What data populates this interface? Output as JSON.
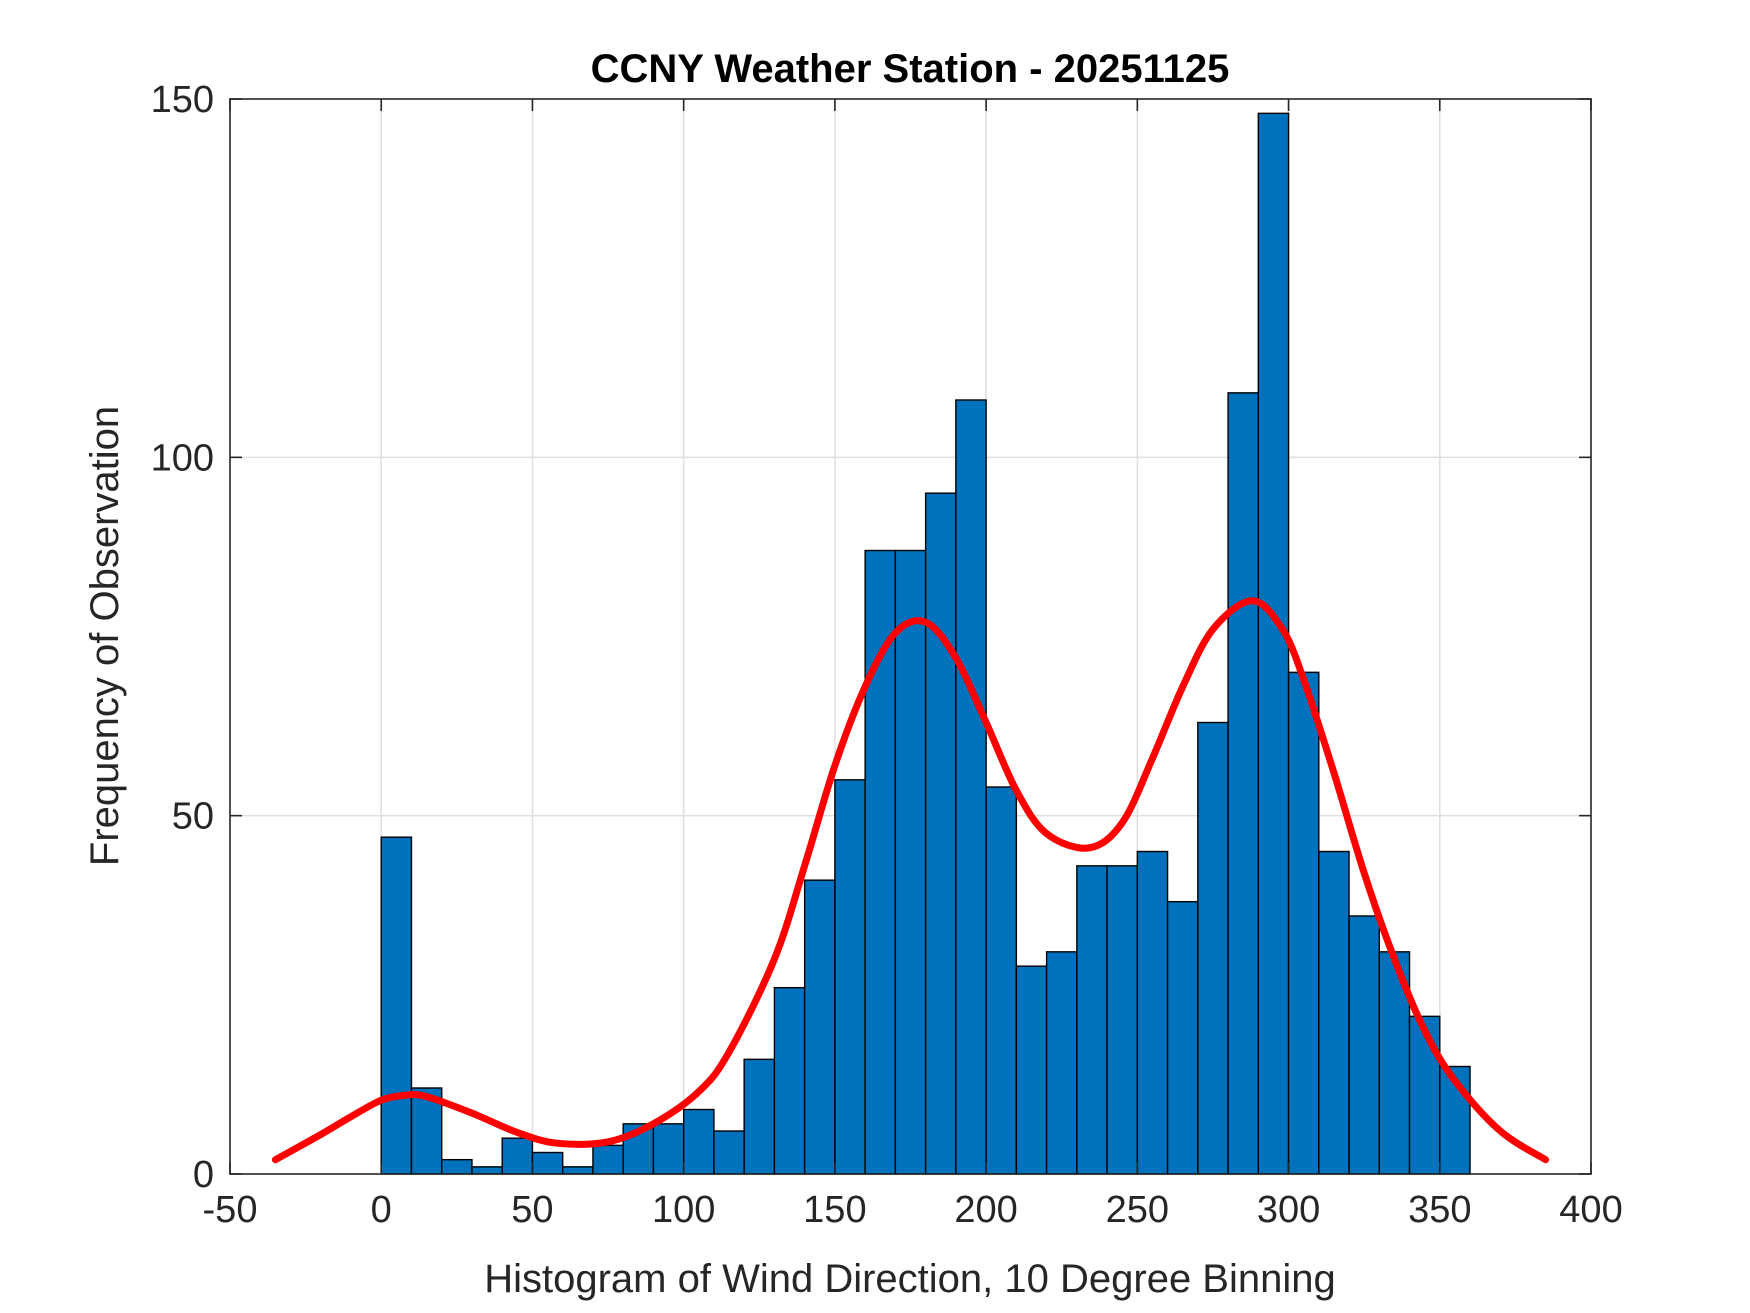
{
  "chart_data": {
    "type": "bar",
    "title": "CCNY Weather Station - 20251125",
    "xlabel": "Histogram of Wind Direction, 10 Degree Binning",
    "ylabel": "Frequency of Observation",
    "xlim": [
      -50,
      400
    ],
    "ylim": [
      0,
      150
    ],
    "xticks": [
      -50,
      0,
      50,
      100,
      150,
      200,
      250,
      300,
      350,
      400
    ],
    "yticks": [
      0,
      50,
      100,
      150
    ],
    "grid": true,
    "bin_width": 10,
    "bin_starts": [
      0,
      10,
      20,
      30,
      40,
      50,
      60,
      70,
      80,
      90,
      100,
      110,
      120,
      130,
      140,
      150,
      160,
      170,
      180,
      190,
      200,
      210,
      220,
      230,
      240,
      250,
      260,
      270,
      280,
      290,
      300,
      310,
      320,
      330,
      340,
      350
    ],
    "values": [
      47,
      12,
      2,
      1,
      5,
      3,
      1,
      4,
      7,
      7,
      9,
      6,
      16,
      26,
      41,
      55,
      87,
      87,
      95,
      108,
      54,
      29,
      31,
      43,
      43,
      45,
      38,
      63,
      109,
      148,
      70,
      45,
      36,
      31,
      22,
      15
    ],
    "bar_color": "#0072BD",
    "fit_color": "#FF0000",
    "fit_curve": {
      "name": "fit",
      "x": [
        -35,
        -20,
        -10,
        0,
        8,
        15,
        30,
        45,
        58,
        75,
        90,
        105,
        115,
        130,
        140,
        150,
        160,
        170,
        180,
        190,
        200,
        210,
        220,
        234,
        245,
        255,
        265,
        275,
        288,
        298,
        305,
        315,
        325,
        335,
        345,
        355,
        370,
        385
      ],
      "y": [
        2,
        5.5,
        8,
        10.3,
        11,
        10.8,
        8.5,
        5.8,
        4.3,
        4.5,
        7,
        11.5,
        17,
        30,
        43,
        57,
        68,
        75.5,
        77,
        72,
        63,
        53.5,
        47.5,
        45.5,
        49,
        58,
        68,
        76,
        80,
        76,
        69,
        56,
        42,
        30,
        20,
        13,
        6,
        2
      ]
    }
  }
}
